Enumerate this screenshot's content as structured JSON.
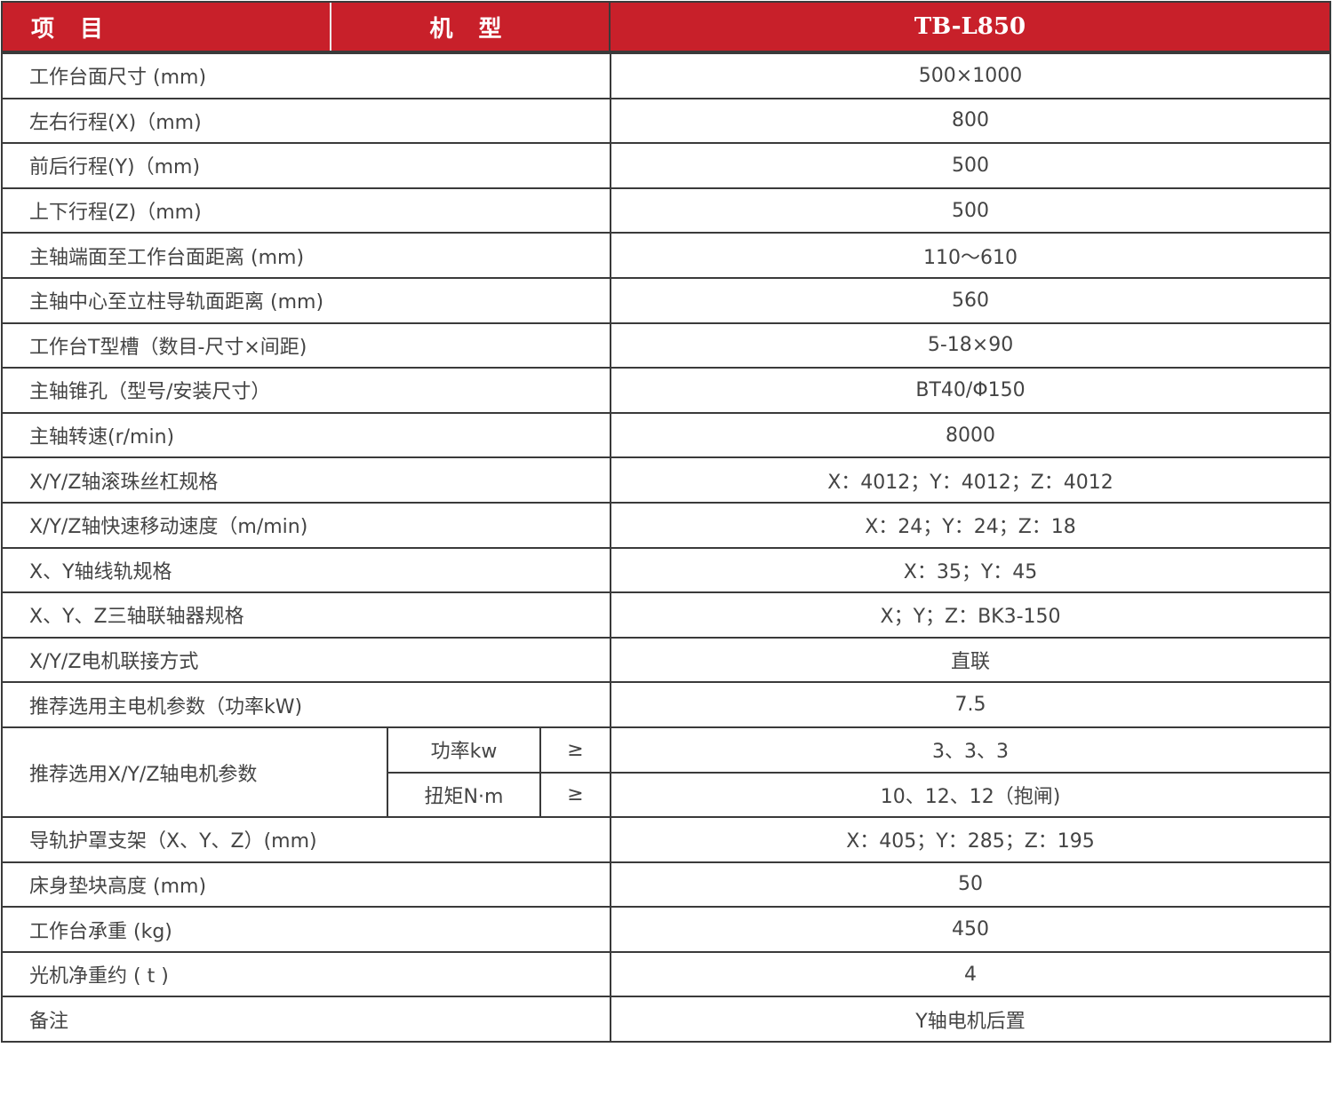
{
  "header": {
    "item": "项 目",
    "model": "机 型",
    "model_name": "TB-L850"
  },
  "rows": [
    {
      "label": "工作台面尺寸 (mm)",
      "value": "500×1000"
    },
    {
      "label": "左右行程(X)（mm)",
      "value": "800"
    },
    {
      "label": "前后行程(Y)（mm)",
      "value": "500"
    },
    {
      "label": "上下行程(Z)（mm)",
      "value": "500"
    },
    {
      "label": "主轴端面至工作台面距离 (mm)",
      "value": "110～610"
    },
    {
      "label": "主轴中心至立柱导轨面距离 (mm)",
      "value": "560"
    },
    {
      "label": "工作台T型槽（数目-尺寸×间距)",
      "value": "5-18×90"
    },
    {
      "label": "主轴锥孔（型号/安装尺寸）",
      "value": "BT40/Φ150"
    },
    {
      "label": "主轴转速(r/min)",
      "value": "8000"
    },
    {
      "label": "X/Y/Z轴滚珠丝杠规格",
      "value": "X：4012；Y：4012；Z：4012"
    },
    {
      "label": "X/Y/Z轴快速移动速度（m/min)",
      "value": "X：24；Y：24；Z：18"
    },
    {
      "label": "X、Y轴线轨规格",
      "value": "X：35；Y：45"
    },
    {
      "label": "X、Y、Z三轴联轴器规格",
      "value": "X；Y；Z：BK3-150"
    },
    {
      "label": "X/Y/Z电机联接方式",
      "value": "直联"
    },
    {
      "label": "推荐选用主电机参数（功率kW)",
      "value": "7.5"
    }
  ],
  "motor": {
    "label": "推荐选用X/Y/Z轴电机参数",
    "sub": [
      {
        "name": "功率kw",
        "op": "≥",
        "value": "3、3、3"
      },
      {
        "name": "扭矩N·m",
        "op": "≥",
        "value": "10、12、12（抱闸)"
      }
    ]
  },
  "rows2": [
    {
      "label": "导轨护罩支架（X、Y、Z）(mm)",
      "value": "X：405；Y：285；Z：195"
    },
    {
      "label": "床身垫块高度 (mm)",
      "value": "50"
    },
    {
      "label": "工作台承重 (kg)",
      "value": "450"
    },
    {
      "label": "光机净重约 ( t )",
      "value": "4"
    },
    {
      "label": "备注",
      "value": "Y轴电机后置"
    }
  ]
}
